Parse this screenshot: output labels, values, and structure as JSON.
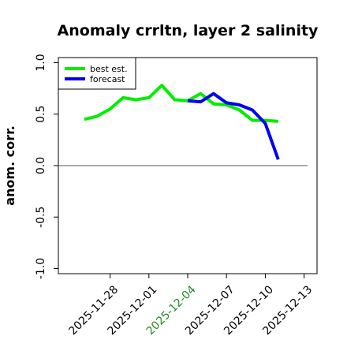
{
  "chart_data": {
    "type": "line",
    "title": "Anomaly crrltn, layer 2 salinity",
    "xlabel": "",
    "ylabel": "anom. corr.",
    "ylim": [
      -1.05,
      1.05
    ],
    "yticks": [
      "-1.0",
      "-0.5",
      "0.0",
      "0.5",
      "1.0"
    ],
    "ytick_values": [
      -1.0,
      -0.5,
      0.0,
      0.5,
      1.0
    ],
    "xlim": [
      "2025-11-24",
      "2025-12-14"
    ],
    "xticks": [
      "2025-11-28",
      "2025-12-01",
      "2025-12-04",
      "2025-12-07",
      "2025-12-10",
      "2025-12-13"
    ],
    "highlight_tick": "2025-12-04",
    "highlight_color": "#228B22",
    "reference_line": 0.0,
    "grid": false,
    "legend": "top-left",
    "series": [
      {
        "name": "best est.",
        "color": "#00ee00",
        "x": [
          "2025-11-26",
          "2025-11-27",
          "2025-11-28",
          "2025-11-29",
          "2025-11-30",
          "2025-12-01",
          "2025-12-02",
          "2025-12-03",
          "2025-12-04",
          "2025-12-05",
          "2025-12-06",
          "2025-12-07",
          "2025-12-08",
          "2025-12-09",
          "2025-12-10",
          "2025-12-11"
        ],
        "values": [
          0.45,
          0.48,
          0.55,
          0.66,
          0.64,
          0.66,
          0.78,
          0.64,
          0.63,
          0.7,
          0.6,
          0.59,
          0.54,
          0.44,
          0.44,
          0.43
        ]
      },
      {
        "name": "forecast",
        "color": "#0000ee",
        "x": [
          "2025-12-04",
          "2025-12-05",
          "2025-12-06",
          "2025-12-07",
          "2025-12-08",
          "2025-12-09",
          "2025-12-10",
          "2025-12-11"
        ],
        "values": [
          0.63,
          0.62,
          0.7,
          0.61,
          0.59,
          0.54,
          0.41,
          0.06
        ]
      }
    ]
  }
}
